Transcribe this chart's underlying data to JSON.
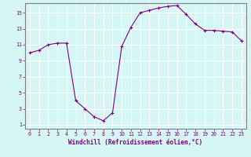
{
  "x": [
    0,
    1,
    2,
    3,
    4,
    5,
    6,
    7,
    8,
    9,
    10,
    11,
    12,
    13,
    14,
    15,
    16,
    17,
    18,
    19,
    20,
    21,
    22,
    23
  ],
  "y": [
    10.0,
    10.3,
    11.0,
    11.2,
    11.2,
    4.0,
    3.0,
    2.0,
    1.5,
    2.5,
    10.8,
    13.2,
    15.0,
    15.3,
    15.6,
    15.8,
    15.9,
    14.8,
    13.6,
    12.8,
    12.8,
    12.7,
    12.6,
    11.5
  ],
  "line_color": "#800080",
  "marker": "+",
  "marker_size": 3,
  "bg_color": "#d6f5f5",
  "grid_color": "#ffffff",
  "xlabel": "Windchill (Refroidissement éolien,°C)",
  "ylim": [
    0.5,
    16.2
  ],
  "xlim": [
    -0.5,
    23.5
  ],
  "yticks": [
    1,
    3,
    5,
    7,
    9,
    11,
    13,
    15
  ],
  "xticks": [
    0,
    1,
    2,
    3,
    4,
    5,
    6,
    7,
    8,
    9,
    10,
    11,
    12,
    13,
    14,
    15,
    16,
    17,
    18,
    19,
    20,
    21,
    22,
    23
  ],
  "tick_color": "#800080",
  "label_fontsize": 5.5,
  "tick_fontsize": 4.8,
  "spine_color": "#808080",
  "linewidth": 0.8,
  "markeredgewidth": 0.8
}
